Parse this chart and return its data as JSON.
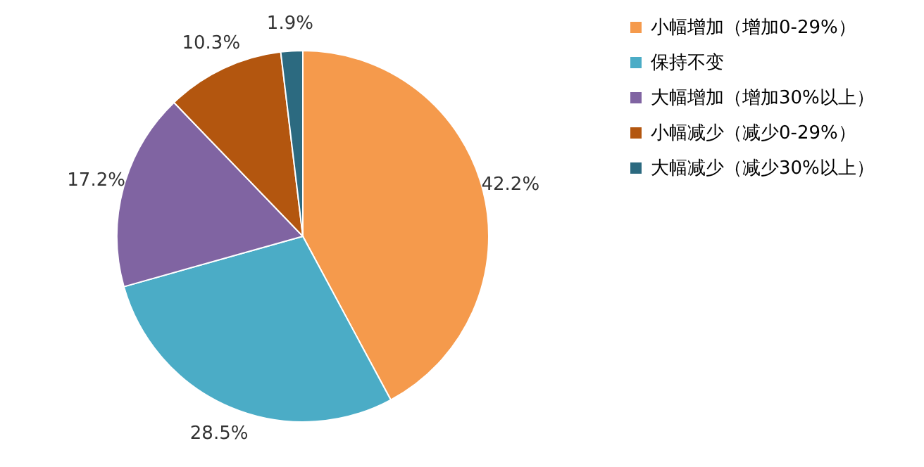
{
  "chart_data": {
    "type": "pie",
    "categories": [
      "小幅增加（增加0-29%）",
      "保持不变",
      "大幅增加（增加30%以上）",
      "小幅减少（减少0-29%）",
      "大幅减少（减少30%以上）"
    ],
    "values": [
      42.2,
      28.5,
      17.2,
      10.3,
      1.9
    ],
    "value_labels": [
      "42.2%",
      "28.5%",
      "17.2%",
      "10.3%",
      "1.9%"
    ],
    "colors": [
      "#f59a4c",
      "#4bacc6",
      "#8064a2",
      "#b3560f",
      "#2c6a80"
    ],
    "legend": "right"
  }
}
